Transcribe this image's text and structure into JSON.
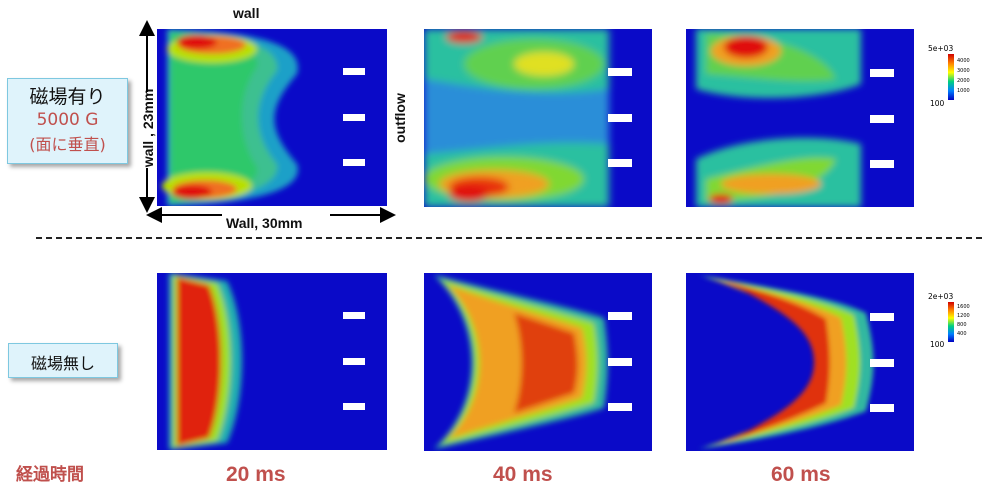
{
  "labels": {
    "wall_top": "wall",
    "wall_left": "wall , 23mm",
    "wall_bottom": "Wall, 30mm",
    "outflow": "outflow"
  },
  "magnetic_on": {
    "line1": "磁場有り",
    "line2": "5000 G",
    "line3": "(面に垂直)"
  },
  "magnetic_off": {
    "line1": "磁場無し"
  },
  "elapsed_time_label": "経過時間",
  "times": [
    "20 ms",
    "40 ms",
    "60 ms"
  ],
  "colorbar_top": {
    "max": "5e+03",
    "ticks": [
      "4000",
      "3000",
      "2000",
      "1000"
    ],
    "min": "100"
  },
  "colorbar_bottom": {
    "max": "2e+03",
    "ticks": [
      "1600",
      "1200",
      "800",
      "400"
    ],
    "min": "100"
  },
  "colors": {
    "background": "#0a0ac8",
    "accent_red": "#c0504d",
    "label_box_fill": "#dff3fb"
  }
}
